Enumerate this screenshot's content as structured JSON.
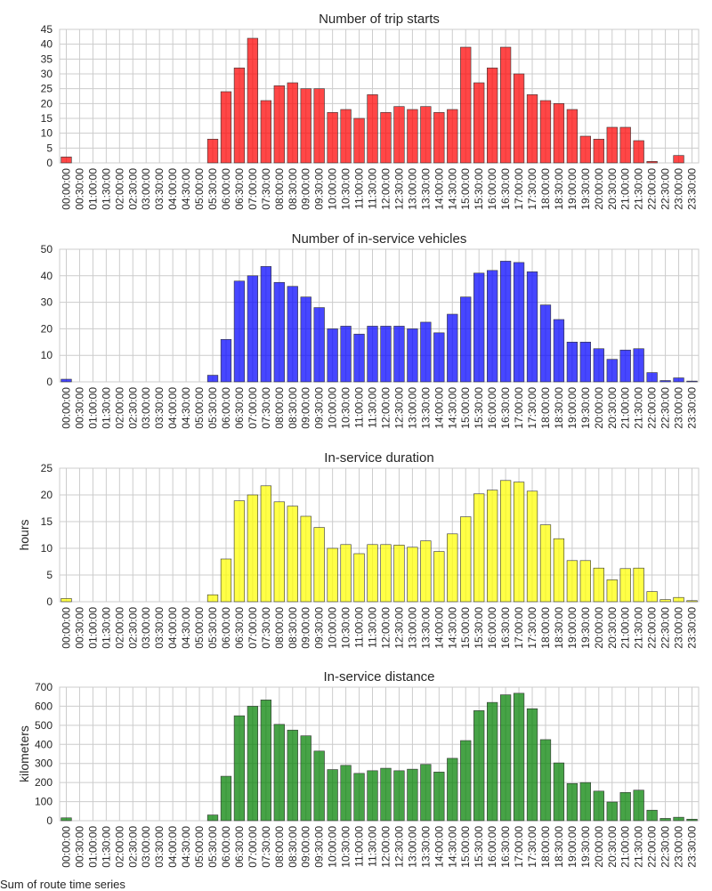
{
  "figure": {
    "caption": "Sum of route time series"
  },
  "chart_data": [
    {
      "type": "bar",
      "title": "Number of trip starts",
      "ylabel": "",
      "color": "#ff0000",
      "ylim": [
        0,
        45
      ],
      "yticks": [
        0,
        5,
        10,
        15,
        20,
        25,
        30,
        35,
        40,
        45
      ],
      "categories": [
        "00:00:00",
        "00:30:00",
        "01:00:00",
        "01:30:00",
        "02:00:00",
        "02:30:00",
        "03:00:00",
        "03:30:00",
        "04:00:00",
        "04:30:00",
        "05:00:00",
        "05:30:00",
        "06:00:00",
        "06:30:00",
        "07:00:00",
        "07:30:00",
        "08:00:00",
        "08:30:00",
        "09:00:00",
        "09:30:00",
        "10:00:00",
        "10:30:00",
        "11:00:00",
        "11:30:00",
        "12:00:00",
        "12:30:00",
        "13:00:00",
        "13:30:00",
        "14:00:00",
        "14:30:00",
        "15:00:00",
        "15:30:00",
        "16:00:00",
        "16:30:00",
        "17:00:00",
        "17:30:00",
        "18:00:00",
        "18:30:00",
        "19:00:00",
        "19:30:00",
        "20:00:00",
        "20:30:00",
        "21:00:00",
        "21:30:00",
        "22:00:00",
        "22:30:00",
        "23:00:00",
        "23:30:00"
      ],
      "values": [
        2,
        0,
        0,
        0,
        0,
        0,
        0,
        0,
        0,
        0,
        0,
        8,
        24,
        32,
        42,
        21,
        26,
        27,
        25,
        25,
        17,
        18,
        15,
        23,
        17,
        19,
        18,
        19,
        17,
        18,
        39,
        27,
        32,
        39,
        30,
        23,
        21,
        20,
        18,
        9,
        8,
        12,
        12,
        7.5,
        0.5,
        0,
        2.5,
        0
      ]
    },
    {
      "type": "bar",
      "title": "Number of in-service vehicles",
      "ylabel": "",
      "color": "#0000ff",
      "ylim": [
        0,
        50
      ],
      "yticks": [
        0,
        10,
        20,
        30,
        40,
        50
      ],
      "categories": [
        "00:00:00",
        "00:30:00",
        "01:00:00",
        "01:30:00",
        "02:00:00",
        "02:30:00",
        "03:00:00",
        "03:30:00",
        "04:00:00",
        "04:30:00",
        "05:00:00",
        "05:30:00",
        "06:00:00",
        "06:30:00",
        "07:00:00",
        "07:30:00",
        "08:00:00",
        "08:30:00",
        "09:00:00",
        "09:30:00",
        "10:00:00",
        "10:30:00",
        "11:00:00",
        "11:30:00",
        "12:00:00",
        "12:30:00",
        "13:00:00",
        "13:30:00",
        "14:00:00",
        "14:30:00",
        "15:00:00",
        "15:30:00",
        "16:00:00",
        "16:30:00",
        "17:00:00",
        "17:30:00",
        "18:00:00",
        "18:30:00",
        "19:00:00",
        "19:30:00",
        "20:00:00",
        "20:30:00",
        "21:00:00",
        "21:30:00",
        "22:00:00",
        "22:30:00",
        "23:00:00",
        "23:30:00"
      ],
      "values": [
        1,
        0,
        0,
        0,
        0,
        0,
        0,
        0,
        0,
        0,
        0,
        2.5,
        16,
        38,
        40,
        43.5,
        37.5,
        36,
        32,
        28,
        20,
        21,
        18,
        21,
        21,
        21,
        20,
        22.5,
        18.5,
        25.5,
        32,
        41,
        42,
        45.5,
        45,
        41.5,
        29,
        23.5,
        15,
        15,
        12.5,
        8.5,
        12,
        12.5,
        3.5,
        0.5,
        1.5,
        0.3
      ]
    },
    {
      "type": "bar",
      "title": "In-service duration",
      "ylabel": "hours",
      "color": "#ffff00",
      "ylim": [
        0,
        25
      ],
      "yticks": [
        0,
        5,
        10,
        15,
        20,
        25
      ],
      "categories": [
        "00:00:00",
        "00:30:00",
        "01:00:00",
        "01:30:00",
        "02:00:00",
        "02:30:00",
        "03:00:00",
        "03:30:00",
        "04:00:00",
        "04:30:00",
        "05:00:00",
        "05:30:00",
        "06:00:00",
        "06:30:00",
        "07:00:00",
        "07:30:00",
        "08:00:00",
        "08:30:00",
        "09:00:00",
        "09:30:00",
        "10:00:00",
        "10:30:00",
        "11:00:00",
        "11:30:00",
        "12:00:00",
        "12:30:00",
        "13:00:00",
        "13:30:00",
        "14:00:00",
        "14:30:00",
        "15:00:00",
        "15:30:00",
        "16:00:00",
        "16:30:00",
        "17:00:00",
        "17:30:00",
        "18:00:00",
        "18:30:00",
        "19:00:00",
        "19:30:00",
        "20:00:00",
        "20:30:00",
        "21:00:00",
        "21:30:00",
        "22:00:00",
        "22:30:00",
        "23:00:00",
        "23:30:00"
      ],
      "values": [
        0.6,
        0,
        0,
        0,
        0,
        0,
        0,
        0,
        0,
        0,
        0,
        1.3,
        8,
        18.9,
        20,
        21.7,
        18.7,
        17.9,
        16,
        13.9,
        10,
        10.7,
        9,
        10.7,
        10.7,
        10.6,
        10.2,
        11.4,
        9.4,
        12.7,
        15.9,
        20.2,
        20.9,
        22.7,
        22.4,
        20.7,
        14.4,
        11.8,
        7.7,
        7.7,
        6.3,
        4.1,
        6.2,
        6.3,
        1.9,
        0.4,
        0.8,
        0.2
      ]
    },
    {
      "type": "bar",
      "title": "In-service distance",
      "ylabel": "kilometers",
      "color": "#008000",
      "ylim": [
        0,
        700
      ],
      "yticks": [
        0,
        100,
        200,
        300,
        400,
        500,
        600,
        700
      ],
      "categories": [
        "00:00:00",
        "00:30:00",
        "01:00:00",
        "01:30:00",
        "02:00:00",
        "02:30:00",
        "03:00:00",
        "03:30:00",
        "04:00:00",
        "04:30:00",
        "05:00:00",
        "05:30:00",
        "06:00:00",
        "06:30:00",
        "07:00:00",
        "07:30:00",
        "08:00:00",
        "08:30:00",
        "09:00:00",
        "09:30:00",
        "10:00:00",
        "10:30:00",
        "11:00:00",
        "11:30:00",
        "12:00:00",
        "12:30:00",
        "13:00:00",
        "13:30:00",
        "14:00:00",
        "14:30:00",
        "15:00:00",
        "15:30:00",
        "16:00:00",
        "16:30:00",
        "17:00:00",
        "17:30:00",
        "18:00:00",
        "18:30:00",
        "19:00:00",
        "19:30:00",
        "20:00:00",
        "20:30:00",
        "21:00:00",
        "21:30:00",
        "22:00:00",
        "22:30:00",
        "23:00:00",
        "23:30:00"
      ],
      "values": [
        15,
        0,
        0,
        0,
        0,
        0,
        0,
        0,
        0,
        0,
        0,
        30,
        233,
        550,
        600,
        633,
        505,
        475,
        445,
        365,
        268,
        290,
        248,
        262,
        275,
        262,
        270,
        295,
        255,
        327,
        420,
        577,
        620,
        660,
        668,
        587,
        425,
        303,
        195,
        200,
        155,
        98,
        148,
        160,
        55,
        12,
        18,
        8
      ]
    }
  ]
}
